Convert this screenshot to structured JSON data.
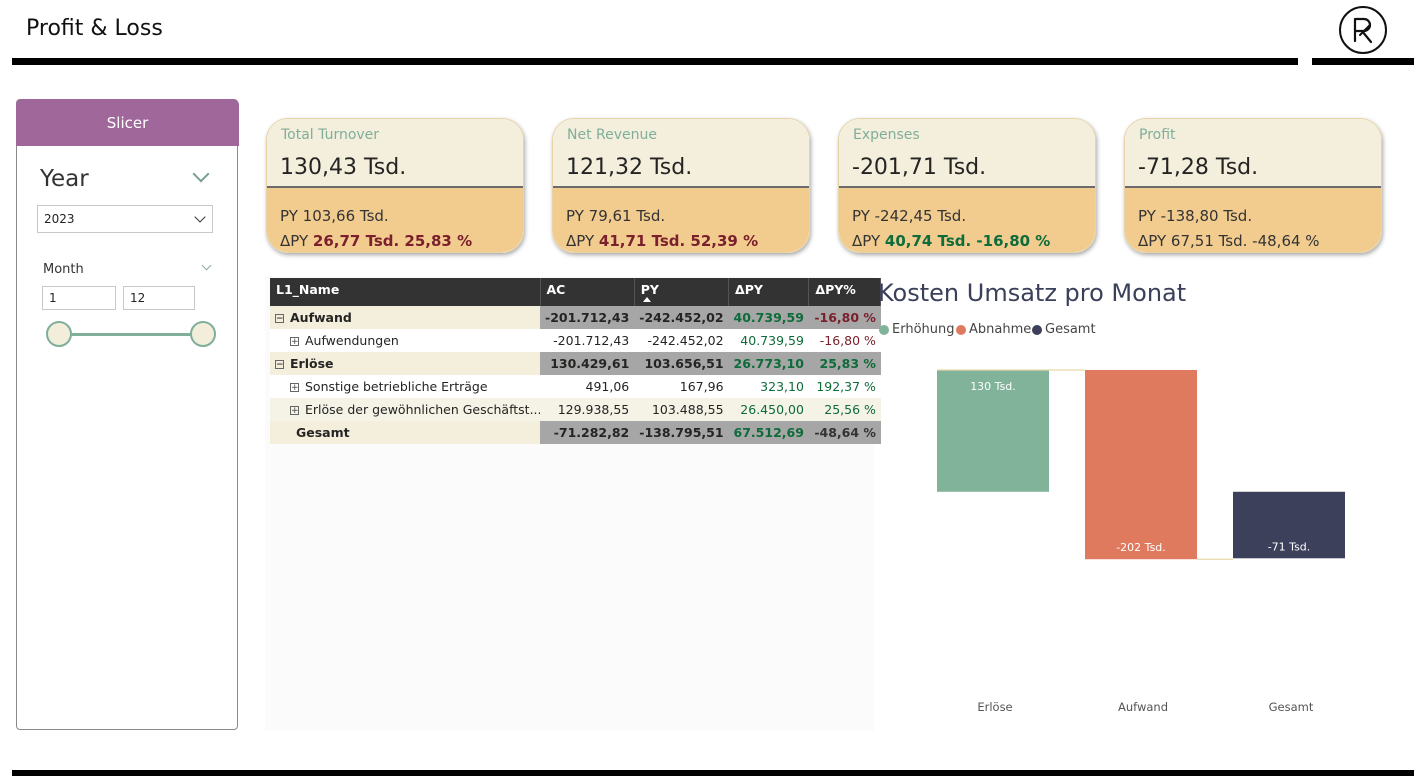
{
  "header": {
    "title": "Profit & Loss"
  },
  "slicer": {
    "header": "Slicer",
    "year": {
      "title": "Year",
      "selected": "2023"
    },
    "month": {
      "title": "Month",
      "min": "1",
      "max": "12"
    }
  },
  "cards": [
    {
      "label": "Total Turnover",
      "value": "130,43 Tsd.",
      "py": "PY 103,66 Tsd.",
      "dpy_prefix": "ΔPY",
      "dpy_value": "26,77 Tsd. 25,83 %",
      "trend": "neg"
    },
    {
      "label": "Net Revenue",
      "value": "121,32 Tsd.",
      "py": "PY 79,61 Tsd.",
      "dpy_prefix": "ΔPY",
      "dpy_value": "41,71 Tsd. 52,39 %",
      "trend": "neg"
    },
    {
      "label": "Expenses",
      "value": "-201,71 Tsd.",
      "py": "PY -242,45 Tsd.",
      "dpy_prefix": "ΔPY",
      "dpy_value": "40,74 Tsd. -16,80 %",
      "trend": "pos"
    },
    {
      "label": "Profit",
      "value": "-71,28 Tsd.",
      "py": "PY -138,80 Tsd.",
      "dpy_prefix": "ΔPY",
      "dpy_value": "67,51 Tsd. -48,64 %",
      "trend": "plain"
    }
  ],
  "matrix": {
    "columns": [
      "L1_Name",
      "AC",
      "PY",
      "ΔPY",
      "ΔPY%"
    ],
    "rows": [
      {
        "name": "Aufwand",
        "level": 0,
        "toggle": "⊟",
        "ac": "-201.712,43",
        "py": "-242.452,02",
        "dpy": "40.739,59",
        "dpyp": "-16,80 %"
      },
      {
        "name": "Aufwendungen",
        "level": 1,
        "toggle": "⊞",
        "ac": "-201.712,43",
        "py": "-242.452,02",
        "dpy": "40.739,59",
        "dpyp": "-16,80 %"
      },
      {
        "name": "Erlöse",
        "level": 0,
        "toggle": "⊟",
        "ac": "130.429,61",
        "py": "103.656,51",
        "dpy": "26.773,10",
        "dpyp": "25,83 %"
      },
      {
        "name": "Sonstige betriebliche Erträge",
        "level": 1,
        "toggle": "⊞",
        "ac": "491,06",
        "py": "167,96",
        "dpy": "323,10",
        "dpyp": "192,37 %"
      },
      {
        "name": "Erlöse der gewöhnlichen Geschäftst...",
        "level": 1,
        "toggle": "⊞",
        "ac": "129.938,55",
        "py": "103.488,55",
        "dpy": "26.450,00",
        "dpyp": "25,56 %"
      },
      {
        "name": "Gesamt",
        "level": 0,
        "toggle": "",
        "ac": "-71.282,82",
        "py": "-138.795,51",
        "dpy": "67.512,69",
        "dpyp": "-48,64 %"
      }
    ]
  },
  "chart_data": {
    "type": "waterfall",
    "title": "Kosten Umsatz pro Monat",
    "legend": [
      "Erhöhung",
      "Abnahme",
      "Gesamt"
    ],
    "legend_position": "top-left",
    "categories": [
      "Erlöse",
      "Aufwand",
      "Gesamt"
    ],
    "values": [
      130,
      -202,
      -71
    ],
    "labels": [
      "130 Tsd.",
      "-202 Tsd.",
      "-71 Tsd."
    ],
    "kinds": [
      "increase",
      "decrease",
      "total"
    ],
    "colors": {
      "increase": "#81b29a",
      "decrease": "#e07a5f",
      "total": "#3d405b"
    },
    "ylim": [
      -202,
      130
    ]
  },
  "colors": {
    "accent": "#a0689a",
    "card_top": "#f4efdd",
    "card_bottom": "#f2cc8f",
    "positive": "#0e6b3a",
    "negative": "#7a1f2b"
  }
}
